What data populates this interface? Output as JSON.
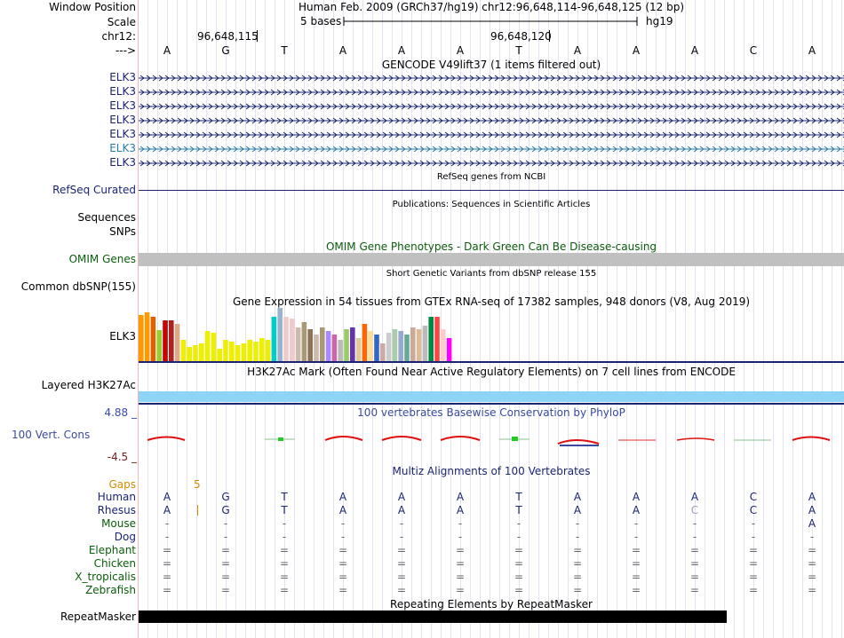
{
  "header": {
    "window_position_label": "Window Position",
    "position_text": "Human Feb. 2009 (GRCh37/hg19)   chr12:96,648,114-96,648,125 (12 bp)",
    "scale_label": "Scale",
    "scale_text": "5 bases",
    "assembly": "hg19",
    "chrom_label": "chr12:",
    "coord1": "96,648,115",
    "coord2": "96,648,120",
    "arrow_label": "--->"
  },
  "bases": [
    "A",
    "G",
    "T",
    "A",
    "A",
    "A",
    "T",
    "A",
    "A",
    "A",
    "C",
    "A"
  ],
  "tracks": {
    "gencode_title": "GENCODE V49lift37 (1 items filtered out)",
    "elk3_rows": [
      {
        "label": "ELK3",
        "color": "#1a2473"
      },
      {
        "label": "ELK3",
        "color": "#1a2473"
      },
      {
        "label": "ELK3",
        "color": "#1a2473"
      },
      {
        "label": "ELK3",
        "color": "#1a2473"
      },
      {
        "label": "ELK3",
        "color": "#1a2473"
      },
      {
        "label": "ELK3",
        "color": "#2a7ca8"
      },
      {
        "label": "ELK3",
        "color": "#1a2473"
      }
    ],
    "refseq_title": "RefSeq genes from NCBI",
    "refseq_label": "RefSeq Curated",
    "publications_title": "Publications: Sequences in Scientific Articles",
    "sequences_label": "Sequences",
    "snps_label": "SNPs",
    "omim_title": "OMIM Gene Phenotypes - Dark Green Can Be Disease-causing",
    "omim_label": "OMIM Genes",
    "dbsnp_title": "Short Genetic Variants from dbSNP release 155",
    "dbsnp_label": "Common dbSNP(155)",
    "gtex_title": "Gene Expression in 54 tissues from GTEx RNA-seq of 17382 samples, 948 donors (V8, Aug 2019)",
    "gtex_label": "ELK3",
    "h3k27ac_title": "H3K27Ac Mark (Often Found Near Active Regulatory Elements) on 7 cell lines from ENCODE",
    "h3k27ac_label": "Layered H3K27Ac",
    "phylop_title": "100 vertebrates Basewise Conservation by PhyloP",
    "phylop_label": "100 Vert. Cons",
    "phylop_max": "4.88 _",
    "phylop_min": "-4.5 _",
    "multiz_title": "Multiz Alignments of 100 Vertebrates",
    "gaps_label": "Gaps",
    "gaps_value": "5",
    "species": [
      {
        "name": "Human",
        "color": "#1a2473",
        "row": [
          "A",
          "G",
          "T",
          "A",
          "A",
          "A",
          "T",
          "A",
          "A",
          "A",
          "C",
          "A"
        ]
      },
      {
        "name": "Rhesus",
        "color": "#1a2473",
        "row": [
          "A",
          "|G",
          "T",
          "A",
          "A",
          "A",
          "T",
          "A",
          "A",
          "C",
          "C",
          "A"
        ]
      },
      {
        "name": "Mouse",
        "color": "#0a5c0a",
        "row": [
          "-",
          "-",
          "-",
          "-",
          "-",
          "-",
          "-",
          "-",
          "-",
          "-",
          "-",
          "A"
        ]
      },
      {
        "name": "Dog",
        "color": "#1a2473",
        "row": [
          "-",
          "-",
          "-",
          "-",
          "-",
          "-",
          "-",
          "-",
          "-",
          "-",
          "-",
          "-"
        ]
      },
      {
        "name": "Elephant",
        "color": "#0a5c0a",
        "row": [
          "=",
          "=",
          "=",
          "=",
          "=",
          "=",
          "=",
          "=",
          "=",
          "=",
          "=",
          "="
        ]
      },
      {
        "name": "Chicken",
        "color": "#0a5c0a",
        "row": [
          "=",
          "=",
          "=",
          "=",
          "=",
          "=",
          "=",
          "=",
          "=",
          "=",
          "=",
          "="
        ]
      },
      {
        "name": "X_tropicalis",
        "color": "#0a5c0a",
        "row": [
          "=",
          "=",
          "=",
          "=",
          "=",
          "=",
          "=",
          "=",
          "=",
          "=",
          "=",
          "="
        ]
      },
      {
        "name": "Zebrafish",
        "color": "#0a5c0a",
        "row": [
          "=",
          "=",
          "=",
          "=",
          "=",
          "=",
          "=",
          "=",
          "=",
          "=",
          "=",
          "="
        ]
      }
    ],
    "repeat_title": "Repeating Elements by RepeatMasker",
    "repeat_label": "RepeatMasker"
  },
  "colors": {
    "omim_bar": "#c0c0c0",
    "h3k27ac_bar": "#8fd3f5",
    "repeat_bar": "#000000"
  }
}
